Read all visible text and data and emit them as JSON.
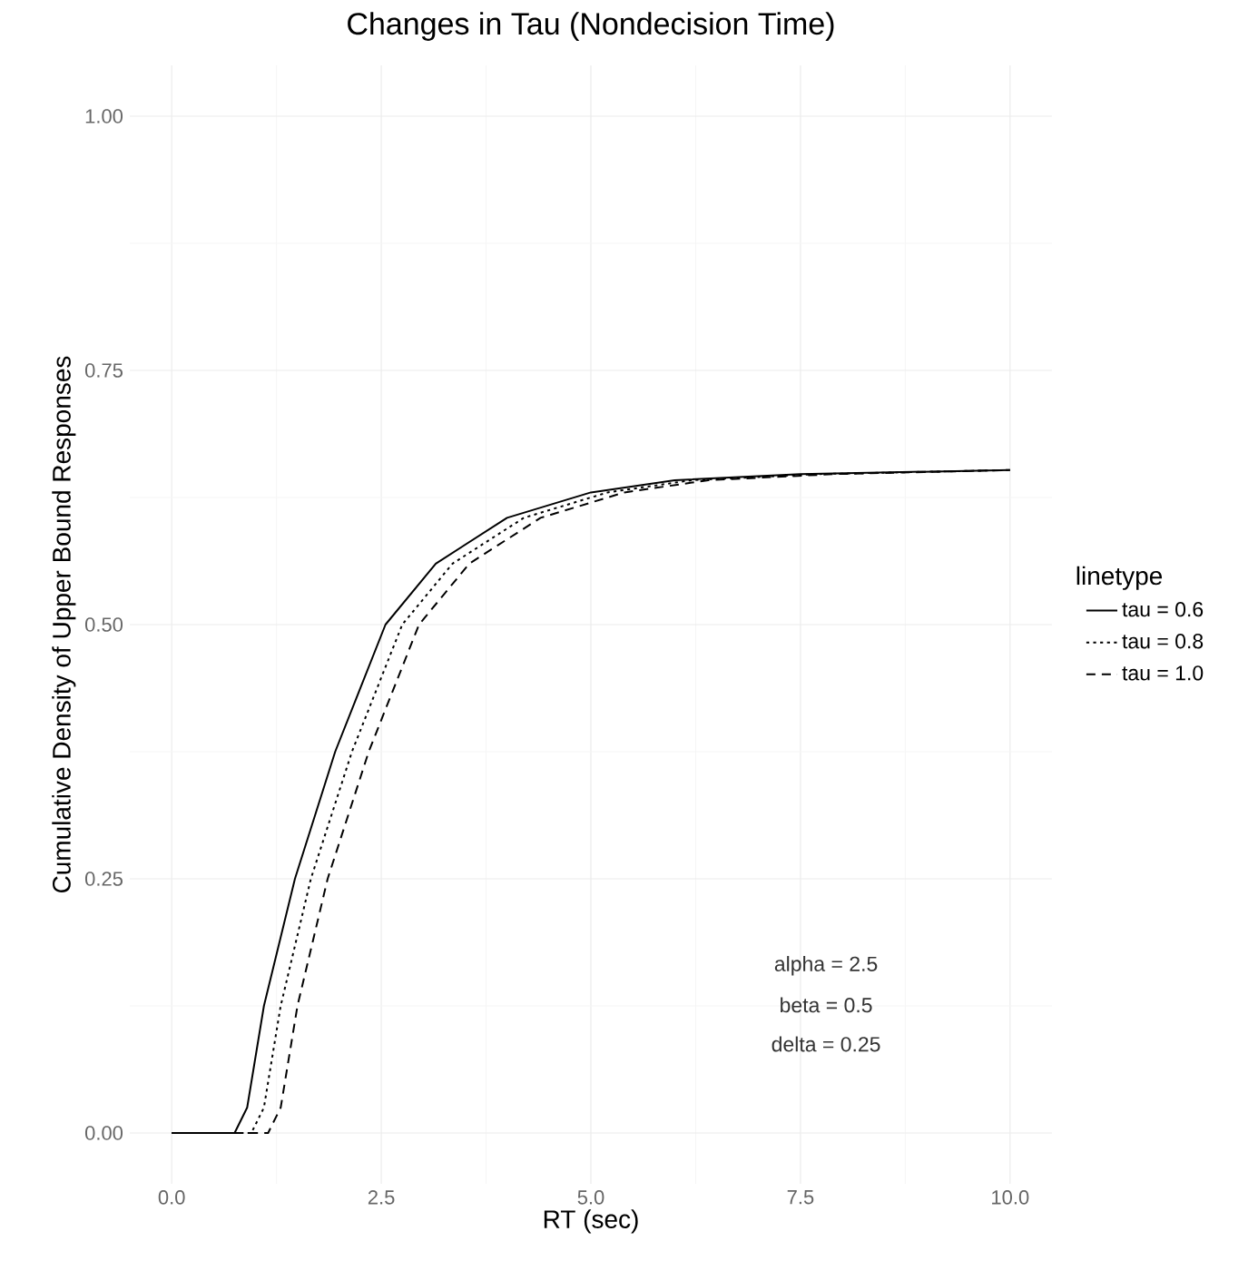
{
  "chart_data": {
    "type": "line",
    "title": "Changes in Tau (Nondecision Time)",
    "xlabel": "RT (sec)",
    "ylabel": "Cumulative Density of Upper Bound Responses",
    "legend_title": "linetype",
    "xlim": [
      -0.5,
      10.5
    ],
    "ylim": [
      -0.05,
      1.05
    ],
    "xticks": [
      {
        "value": 0,
        "label": "0.0"
      },
      2.5,
      {
        "value": 5,
        "label": "5.0"
      },
      7.5,
      {
        "value": 10,
        "label": "10.0"
      }
    ],
    "yticks": [
      {
        "value": 0,
        "label": "0.00"
      },
      0.25,
      {
        "value": 0.5,
        "label": "0.50"
      },
      0.75,
      {
        "value": 1,
        "label": "1.00"
      }
    ],
    "grid": true,
    "legend": "right",
    "marker": "none",
    "annotations": [
      "alpha = 2.5",
      "beta = 0.5",
      "delta = 0.25"
    ],
    "series": [
      {
        "name": "tau = 0.6",
        "color": "#000000",
        "line_style": "solid",
        "x": [
          0,
          0.75,
          0.9,
          1.1,
          1.47,
          1.95,
          2.55,
          3.15,
          4,
          5,
          6,
          7.5,
          10
        ],
        "values": [
          0,
          0,
          0.025,
          0.125,
          0.25,
          0.375,
          0.5,
          0.56,
          0.605,
          0.63,
          0.642,
          0.648,
          0.652
        ]
      },
      {
        "name": "tau = 0.8",
        "color": "#000000",
        "line_style": "dotted",
        "x": [
          0,
          0.95,
          1.1,
          1.3,
          1.66,
          2.15,
          2.75,
          3.35,
          4.2,
          5.2,
          6.2,
          7.7,
          10
        ],
        "values": [
          0,
          0,
          0.025,
          0.125,
          0.25,
          0.375,
          0.5,
          0.56,
          0.605,
          0.63,
          0.642,
          0.648,
          0.652
        ]
      },
      {
        "name": "tau = 1.0",
        "color": "#000000",
        "line_style": "dashed",
        "x": [
          0,
          1.15,
          1.3,
          1.5,
          1.86,
          2.35,
          2.95,
          3.55,
          4.4,
          5.4,
          6.4,
          7.9,
          10
        ],
        "values": [
          0,
          0,
          0.025,
          0.125,
          0.25,
          0.375,
          0.5,
          0.56,
          0.605,
          0.63,
          0.642,
          0.648,
          0.652
        ]
      }
    ]
  }
}
